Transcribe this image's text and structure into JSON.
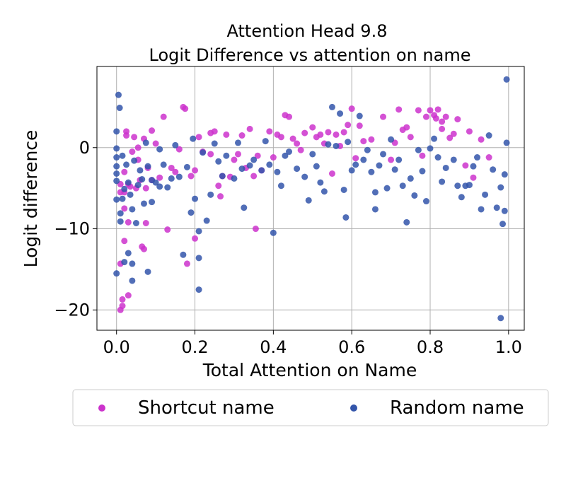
{
  "chart_data": {
    "type": "scatter",
    "title": [
      "Attention Head 9.8",
      "Logit Difference vs attention on name"
    ],
    "xlabel": "Total Attention on Name",
    "ylabel": "Logit difference",
    "xlim": [
      -0.05,
      1.04
    ],
    "ylim": [
      -22.5,
      10
    ],
    "xticks": [
      0.0,
      0.2,
      0.4,
      0.6,
      0.8,
      1.0
    ],
    "xtick_labels": [
      "0.0",
      "0.2",
      "0.4",
      "0.6",
      "0.8",
      "1.0"
    ],
    "yticks": [
      0,
      -10,
      -20
    ],
    "ytick_labels": [
      "0",
      "−10",
      "−20"
    ],
    "grid": true,
    "legend_position": "bottom, outside plot",
    "series": [
      {
        "name": "Shortcut name",
        "color": "#cc33cc",
        "points": [
          [
            0.01,
            -4.5
          ],
          [
            0.01,
            -5.5
          ],
          [
            0.01,
            -14.3
          ],
          [
            0.01,
            -20.0
          ],
          [
            0.015,
            -18.7
          ],
          [
            0.015,
            -19.5
          ],
          [
            0.02,
            -5.5
          ],
          [
            0.02,
            -7.5
          ],
          [
            0.02,
            -11.5
          ],
          [
            0.02,
            -3.0
          ],
          [
            0.025,
            1.5
          ],
          [
            0.025,
            2.0
          ],
          [
            0.03,
            -4.5
          ],
          [
            0.03,
            -9.2
          ],
          [
            0.03,
            -18.2
          ],
          [
            0.035,
            -4.8
          ],
          [
            0.04,
            -0.5
          ],
          [
            0.045,
            1.3
          ],
          [
            0.05,
            -5.0
          ],
          [
            0.055,
            0.0
          ],
          [
            0.055,
            -1.5
          ],
          [
            0.06,
            -4.0
          ],
          [
            0.065,
            -12.2
          ],
          [
            0.07,
            -12.5
          ],
          [
            0.07,
            1.1
          ],
          [
            0.075,
            -9.3
          ],
          [
            0.075,
            -5.0
          ],
          [
            0.08,
            -2.5
          ],
          [
            0.09,
            -4.0
          ],
          [
            0.09,
            2.1
          ],
          [
            0.1,
            0.5
          ],
          [
            0.11,
            -3.7
          ],
          [
            0.12,
            3.8
          ],
          [
            0.13,
            -10.1
          ],
          [
            0.14,
            -2.5
          ],
          [
            0.15,
            -3.0
          ],
          [
            0.16,
            -0.2
          ],
          [
            0.17,
            5.0
          ],
          [
            0.175,
            4.8
          ],
          [
            0.18,
            -14.3
          ],
          [
            0.19,
            -3.5
          ],
          [
            0.2,
            -2.8
          ],
          [
            0.2,
            -11.2
          ],
          [
            0.21,
            1.3
          ],
          [
            0.22,
            -0.5
          ],
          [
            0.24,
            -0.8
          ],
          [
            0.24,
            1.8
          ],
          [
            0.25,
            2.0
          ],
          [
            0.26,
            -4.7
          ],
          [
            0.265,
            -6.0
          ],
          [
            0.27,
            -3.5
          ],
          [
            0.28,
            1.6
          ],
          [
            0.29,
            -3.6
          ],
          [
            0.3,
            -1.5
          ],
          [
            0.31,
            -0.8
          ],
          [
            0.32,
            1.5
          ],
          [
            0.33,
            -2.5
          ],
          [
            0.34,
            2.3
          ],
          [
            0.35,
            -3.5
          ],
          [
            0.355,
            -10.0
          ],
          [
            0.36,
            -1.0
          ],
          [
            0.37,
            -2.8
          ],
          [
            0.39,
            2.0
          ],
          [
            0.4,
            -1.2
          ],
          [
            0.41,
            1.6
          ],
          [
            0.42,
            1.3
          ],
          [
            0.43,
            4.0
          ],
          [
            0.44,
            3.8
          ],
          [
            0.45,
            1.1
          ],
          [
            0.46,
            0.5
          ],
          [
            0.47,
            -0.3
          ],
          [
            0.48,
            1.8
          ],
          [
            0.5,
            2.5
          ],
          [
            0.51,
            1.3
          ],
          [
            0.52,
            1.6
          ],
          [
            0.53,
            0.5
          ],
          [
            0.54,
            1.9
          ],
          [
            0.55,
            -3.2
          ],
          [
            0.56,
            1.6
          ],
          [
            0.57,
            0.2
          ],
          [
            0.58,
            1.9
          ],
          [
            0.59,
            2.8
          ],
          [
            0.6,
            4.8
          ],
          [
            0.61,
            -1.3
          ],
          [
            0.62,
            2.7
          ],
          [
            0.63,
            0.8
          ],
          [
            0.65,
            1.0
          ],
          [
            0.68,
            3.8
          ],
          [
            0.7,
            -1.5
          ],
          [
            0.71,
            0.6
          ],
          [
            0.72,
            4.7
          ],
          [
            0.73,
            2.2
          ],
          [
            0.74,
            2.5
          ],
          [
            0.75,
            1.3
          ],
          [
            0.77,
            4.6
          ],
          [
            0.78,
            -1.0
          ],
          [
            0.79,
            3.8
          ],
          [
            0.8,
            4.6
          ],
          [
            0.81,
            4.0
          ],
          [
            0.815,
            3.6
          ],
          [
            0.82,
            4.7
          ],
          [
            0.83,
            3.2
          ],
          [
            0.83,
            2.3
          ],
          [
            0.84,
            3.8
          ],
          [
            0.85,
            1.2
          ],
          [
            0.86,
            1.7
          ],
          [
            0.87,
            3.5
          ],
          [
            0.89,
            -2.2
          ],
          [
            0.9,
            2.0
          ],
          [
            0.91,
            -3.7
          ],
          [
            0.93,
            1.0
          ],
          [
            0.95,
            -1.2
          ]
        ]
      },
      {
        "name": "Random name",
        "color": "#3355aa",
        "points": [
          [
            0.0,
            2.0
          ],
          [
            0.0,
            -0.1
          ],
          [
            0.0,
            -1.2
          ],
          [
            0.0,
            -2.3
          ],
          [
            0.0,
            -3.2
          ],
          [
            0.0,
            -4.1
          ],
          [
            0.0,
            -6.4
          ],
          [
            0.0,
            -15.5
          ],
          [
            0.005,
            6.5
          ],
          [
            0.008,
            4.9
          ],
          [
            0.01,
            -8.1
          ],
          [
            0.01,
            -9.1
          ],
          [
            0.015,
            -6.3
          ],
          [
            0.015,
            -1.0
          ],
          [
            0.02,
            -14.1
          ],
          [
            0.02,
            -5.1
          ],
          [
            0.025,
            -2.1
          ],
          [
            0.03,
            -4.3
          ],
          [
            0.03,
            -13.0
          ],
          [
            0.035,
            -5.8
          ],
          [
            0.04,
            -14.3
          ],
          [
            0.04,
            -16.4
          ],
          [
            0.04,
            -7.6
          ],
          [
            0.045,
            -1.6
          ],
          [
            0.05,
            -9.3
          ],
          [
            0.055,
            -4.6
          ],
          [
            0.06,
            -2.8
          ],
          [
            0.065,
            -3.9
          ],
          [
            0.07,
            -6.9
          ],
          [
            0.075,
            0.6
          ],
          [
            0.08,
            -15.3
          ],
          [
            0.08,
            -2.3
          ],
          [
            0.09,
            -4.0
          ],
          [
            0.09,
            -6.7
          ],
          [
            0.1,
            -4.3
          ],
          [
            0.11,
            -4.8
          ],
          [
            0.11,
            -0.2
          ],
          [
            0.12,
            -2.1
          ],
          [
            0.13,
            -4.9
          ],
          [
            0.14,
            -3.8
          ],
          [
            0.15,
            0.3
          ],
          [
            0.16,
            -3.6
          ],
          [
            0.17,
            -13.2
          ],
          [
            0.18,
            -2.4
          ],
          [
            0.19,
            -8.0
          ],
          [
            0.195,
            1.1
          ],
          [
            0.2,
            -6.3
          ],
          [
            0.21,
            -10.3
          ],
          [
            0.21,
            -13.6
          ],
          [
            0.21,
            -17.5
          ],
          [
            0.22,
            -0.6
          ],
          [
            0.23,
            -9.0
          ],
          [
            0.24,
            -5.8
          ],
          [
            0.25,
            0.5
          ],
          [
            0.26,
            -1.7
          ],
          [
            0.27,
            -3.5
          ],
          [
            0.28,
            -1.0
          ],
          [
            0.3,
            -3.8
          ],
          [
            0.31,
            0.6
          ],
          [
            0.32,
            -2.6
          ],
          [
            0.325,
            -7.4
          ],
          [
            0.34,
            -2.2
          ],
          [
            0.35,
            -1.5
          ],
          [
            0.37,
            -2.8
          ],
          [
            0.38,
            0.8
          ],
          [
            0.39,
            -2.1
          ],
          [
            0.4,
            -10.5
          ],
          [
            0.41,
            -3.0
          ],
          [
            0.42,
            -4.7
          ],
          [
            0.43,
            -1.0
          ],
          [
            0.44,
            -0.5
          ],
          [
            0.46,
            -2.6
          ],
          [
            0.48,
            -3.6
          ],
          [
            0.49,
            -6.5
          ],
          [
            0.5,
            -0.8
          ],
          [
            0.51,
            -2.3
          ],
          [
            0.52,
            -4.3
          ],
          [
            0.53,
            -5.4
          ],
          [
            0.54,
            0.4
          ],
          [
            0.55,
            5.0
          ],
          [
            0.56,
            0.2
          ],
          [
            0.57,
            4.2
          ],
          [
            0.58,
            -5.2
          ],
          [
            0.585,
            -8.6
          ],
          [
            0.59,
            0.7
          ],
          [
            0.6,
            -2.8
          ],
          [
            0.61,
            -2.1
          ],
          [
            0.62,
            3.9
          ],
          [
            0.63,
            -1.5
          ],
          [
            0.64,
            -0.3
          ],
          [
            0.65,
            -3.0
          ],
          [
            0.66,
            -5.5
          ],
          [
            0.66,
            -7.6
          ],
          [
            0.67,
            -2.2
          ],
          [
            0.68,
            -0.8
          ],
          [
            0.69,
            -5.0
          ],
          [
            0.7,
            1.0
          ],
          [
            0.71,
            -2.7
          ],
          [
            0.72,
            -1.5
          ],
          [
            0.73,
            -4.7
          ],
          [
            0.74,
            -9.2
          ],
          [
            0.75,
            -3.8
          ],
          [
            0.76,
            -5.9
          ],
          [
            0.77,
            -0.3
          ],
          [
            0.78,
            -2.9
          ],
          [
            0.79,
            -6.6
          ],
          [
            0.8,
            -0.1
          ],
          [
            0.81,
            1.1
          ],
          [
            0.82,
            -1.2
          ],
          [
            0.83,
            -4.2
          ],
          [
            0.84,
            -2.5
          ],
          [
            0.86,
            -1.5
          ],
          [
            0.87,
            -4.7
          ],
          [
            0.88,
            -6.1
          ],
          [
            0.89,
            -4.7
          ],
          [
            0.9,
            -4.6
          ],
          [
            0.91,
            -2.3
          ],
          [
            0.92,
            -1.2
          ],
          [
            0.93,
            -7.6
          ],
          [
            0.94,
            -5.8
          ],
          [
            0.95,
            1.5
          ],
          [
            0.96,
            -2.7
          ],
          [
            0.97,
            -7.4
          ],
          [
            0.98,
            -4.9
          ],
          [
            0.98,
            -21.0
          ],
          [
            0.985,
            -9.4
          ],
          [
            0.99,
            -7.8
          ],
          [
            0.99,
            -3.3
          ],
          [
            0.995,
            0.6
          ],
          [
            0.995,
            8.4
          ]
        ]
      }
    ]
  }
}
